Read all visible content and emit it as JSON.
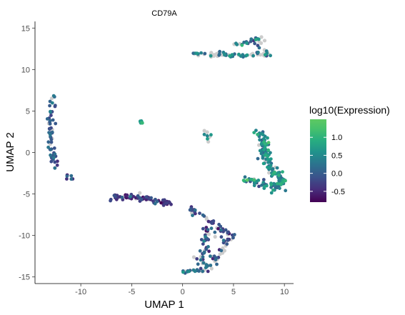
{
  "chart_data": {
    "type": "scatter",
    "title": "CD79A",
    "xlabel": "UMAP 1",
    "ylabel": "UMAP 2",
    "xlim": [
      -14.5,
      10.9
    ],
    "ylim": [
      -15.8,
      15.8
    ],
    "x_ticks": [
      -10,
      -5,
      0,
      5,
      10
    ],
    "y_ticks": [
      -15,
      -10,
      -5,
      0,
      5,
      10,
      15
    ],
    "x_tick_labels": [
      "-10",
      "-5",
      "0",
      "5",
      "10"
    ],
    "y_tick_labels": [
      "-15",
      "-10",
      "-5",
      "0",
      "5",
      "10",
      "15"
    ],
    "grid": false,
    "legend": {
      "title": "log10(Expression)",
      "placement": "right",
      "range": [
        -0.8,
        1.5
      ],
      "ticks": [
        -0.5,
        0.0,
        0.5,
        1.0
      ],
      "tick_labels": [
        "-0.5",
        "0.0",
        "0.5",
        "1.0"
      ]
    },
    "colors": {
      "no_expression": "#cccccc",
      "viridis_low": "#440154",
      "viridis_mid": "#21918c",
      "viridis_high": "#5ec962"
    },
    "clusters": [
      {
        "path": [
          [
            -12.5,
            7.2
          ],
          [
            -12.9,
            5.0
          ],
          [
            -13.1,
            2.8
          ],
          [
            -12.9,
            1.0
          ],
          [
            -12.7,
            -1.0
          ],
          [
            -12.3,
            -2.2
          ],
          [
            -11.5,
            -2.8
          ],
          [
            -10.6,
            -3.3
          ]
        ],
        "n": 65,
        "spread": 0.35,
        "value_mean": 0.0,
        "value_sd": 0.25,
        "grey_frac": 0.1
      },
      {
        "path": [
          [
            -6.9,
            -5.4
          ],
          [
            -5.5,
            -5.3
          ],
          [
            -4.3,
            -5.5
          ],
          [
            -3.0,
            -5.6
          ],
          [
            -2.2,
            -5.9
          ],
          [
            -1.2,
            -6.2
          ]
        ],
        "n": 80,
        "spread": 0.28,
        "value_mean": -0.3,
        "value_sd": 0.25,
        "grey_frac": 0.12
      },
      {
        "path": [
          [
            0.6,
            -6.9
          ],
          [
            1.7,
            -7.5
          ],
          [
            2.5,
            -8.0
          ],
          [
            3.2,
            -8.7
          ],
          [
            3.8,
            -9.5
          ],
          [
            5.0,
            -10.0
          ]
        ],
        "n": 40,
        "spread": 0.3,
        "value_mean": -0.2,
        "value_sd": 0.25,
        "grey_frac": 0.2
      },
      {
        "path": [
          [
            2.5,
            -9.0
          ],
          [
            2.3,
            -10.5
          ],
          [
            2.0,
            -11.8
          ],
          [
            1.6,
            -13.0
          ],
          [
            2.2,
            -13.9
          ],
          [
            3.3,
            -12.7
          ],
          [
            4.0,
            -11.5
          ],
          [
            4.5,
            -10.2
          ]
        ],
        "n": 85,
        "spread": 0.45,
        "value_mean": 0.0,
        "value_sd": 0.35,
        "grey_frac": 0.35
      },
      {
        "path": [
          [
            0.0,
            -14.4
          ],
          [
            1.2,
            -14.3
          ],
          [
            2.3,
            -14.0
          ],
          [
            2.8,
            -13.6
          ]
        ],
        "n": 25,
        "spread": 0.22,
        "value_mean": 0.2,
        "value_sd": 0.25,
        "grey_frac": 0.3
      },
      {
        "path": [
          [
            0.7,
            11.9
          ],
          [
            2.5,
            11.8
          ],
          [
            4.4,
            11.8
          ],
          [
            6.3,
            11.7
          ],
          [
            7.5,
            11.9
          ],
          [
            8.4,
            11.7
          ]
        ],
        "n": 70,
        "spread": 0.22,
        "value_mean": 0.4,
        "value_sd": 0.3,
        "grey_frac": 0.45
      },
      {
        "path": [
          [
            5.0,
            12.8
          ],
          [
            6.4,
            13.2
          ],
          [
            7.5,
            13.8
          ],
          [
            7.9,
            12.6
          ],
          [
            8.4,
            11.9
          ]
        ],
        "n": 30,
        "spread": 0.28,
        "value_mean": 0.45,
        "value_sd": 0.3,
        "grey_frac": 0.4
      },
      {
        "path": [
          [
            7.3,
            2.6
          ],
          [
            7.8,
            1.5
          ],
          [
            8.1,
            0.2
          ],
          [
            8.4,
            -1.2
          ],
          [
            8.6,
            -2.3
          ],
          [
            9.4,
            -2.4
          ],
          [
            9.8,
            -3.9
          ],
          [
            8.9,
            -4.2
          ],
          [
            8.1,
            -3.9
          ],
          [
            6.8,
            -3.4
          ],
          [
            6.2,
            -3.2
          ]
        ],
        "n": 170,
        "spread": 0.42,
        "value_mean": 0.55,
        "value_sd": 0.35,
        "grey_frac": 0.05
      },
      {
        "path": [
          [
            -4.3,
            3.9
          ],
          [
            -3.8,
            3.4
          ]
        ],
        "n": 9,
        "spread": 0.12,
        "value_mean": 0.8,
        "value_sd": 0.15,
        "grey_frac": 0.0
      },
      {
        "path": [
          [
            2.1,
            2.5
          ],
          [
            2.6,
            2.1
          ],
          [
            2.3,
            1.3
          ]
        ],
        "n": 9,
        "spread": 0.3,
        "value_mean": 0.6,
        "value_sd": 0.2,
        "grey_frac": 0.5
      }
    ]
  }
}
